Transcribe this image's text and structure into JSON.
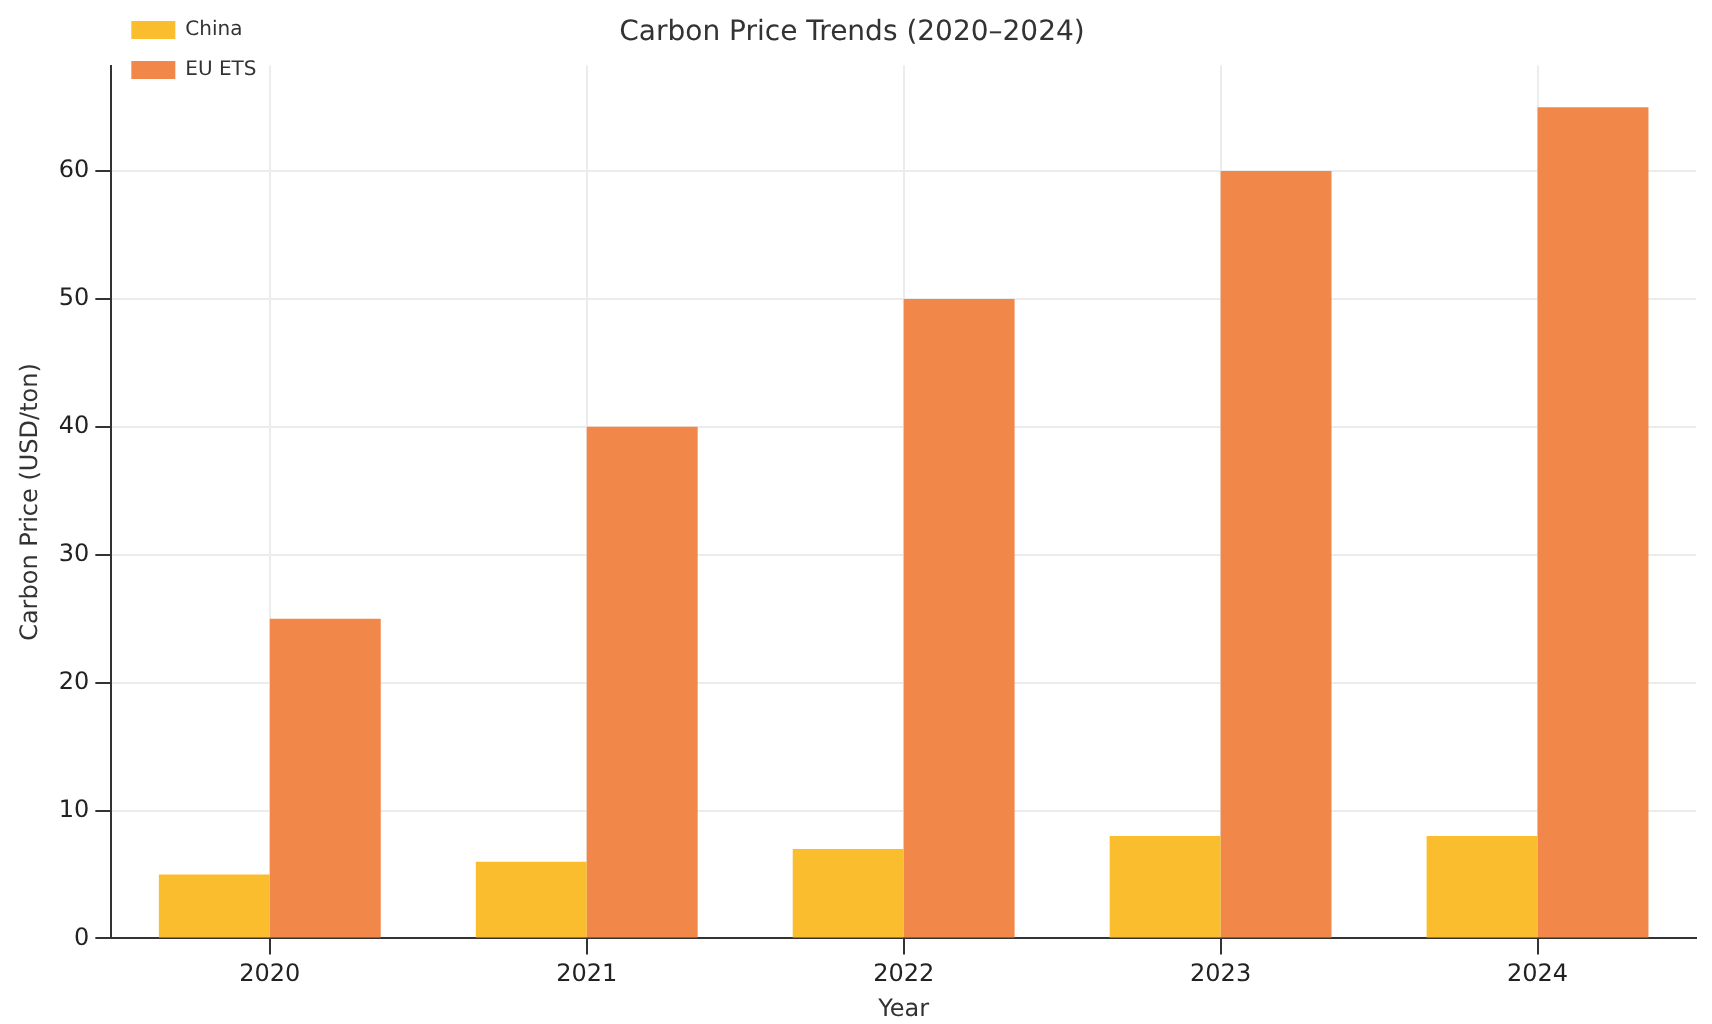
{
  "chart_data": {
    "type": "bar",
    "title": "Carbon Price Trends (2020–2024)",
    "xlabel": "Year",
    "ylabel": "Carbon Price (USD/ton)",
    "categories": [
      "2020",
      "2021",
      "2022",
      "2023",
      "2024"
    ],
    "series": [
      {
        "name": "China",
        "color": "#f9bd2d",
        "values": [
          5,
          6,
          7,
          8,
          8
        ]
      },
      {
        "name": "EU ETS",
        "color": "#f2874a",
        "values": [
          25,
          40,
          50,
          60,
          65
        ]
      }
    ],
    "ylim": [
      0,
      68.25
    ],
    "yticks": [
      0,
      10,
      20,
      30,
      40,
      50,
      60
    ],
    "grid": true,
    "legend": "top left"
  }
}
